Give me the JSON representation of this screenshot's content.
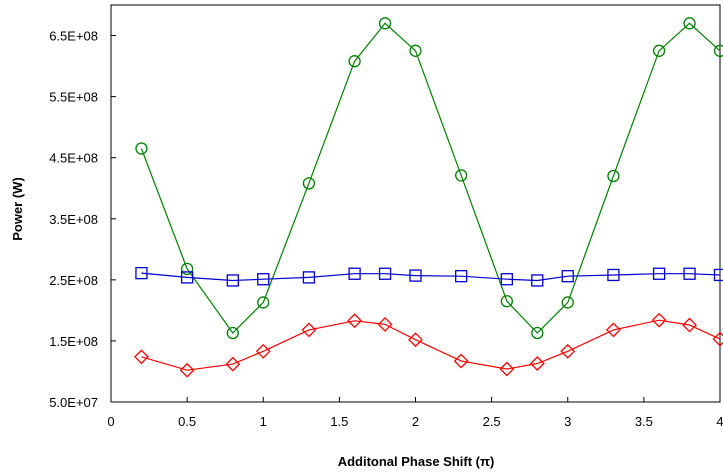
{
  "chart_data": {
    "type": "line",
    "title": "",
    "xlabel": "Additonal Phase Shift (π)",
    "ylabel": "Power (W)",
    "xlim": [
      0,
      4
    ],
    "ylim": [
      50000000,
      700000000
    ],
    "x_ticks": [
      0,
      0.5,
      1,
      1.5,
      2,
      2.5,
      3,
      3.5,
      4
    ],
    "x_tick_labels": [
      "0",
      "0.5",
      "1",
      "1.5",
      "2",
      "2.5",
      "3",
      "3.5",
      "4"
    ],
    "y_ticks": [
      50000000,
      150000000,
      250000000,
      350000000,
      450000000,
      550000000,
      650000000
    ],
    "y_tick_labels": [
      "5.0E+07",
      "1.5E+08",
      "2.5E+08",
      "3.5E+08",
      "4.5E+08",
      "5.5E+08",
      "6.5E+08"
    ],
    "grid": false,
    "legend": "none",
    "x": [
      0.2,
      0.5,
      0.8,
      1.0,
      1.3,
      1.6,
      1.8,
      2.0,
      2.3,
      2.6,
      2.8,
      3.0,
      3.3,
      3.6,
      3.8,
      4.0
    ],
    "series": [
      {
        "color": "#008000",
        "marker": "circle",
        "values": [
          465000000,
          268000000,
          163000000,
          213000000,
          408000000,
          608000000,
          670000000,
          625000000,
          421000000,
          215000000,
          163000000,
          213000000,
          420000000,
          625000000,
          670000000,
          625000000
        ]
      },
      {
        "color": "#0000CC",
        "marker": "square",
        "values": [
          261000000,
          254000000,
          249000000,
          251000000,
          254000000,
          260000000,
          260000000,
          257000000,
          256000000,
          251000000,
          249000000,
          256000000,
          258000000,
          260000000,
          260000000,
          258000000
        ]
      },
      {
        "color": "#FF0000",
        "marker": "diamond",
        "values": [
          124000000,
          102000000,
          112000000,
          133000000,
          168000000,
          183000000,
          177000000,
          152000000,
          117000000,
          104000000,
          113000000,
          133000000,
          168000000,
          184000000,
          176000000,
          153000000
        ]
      }
    ]
  }
}
